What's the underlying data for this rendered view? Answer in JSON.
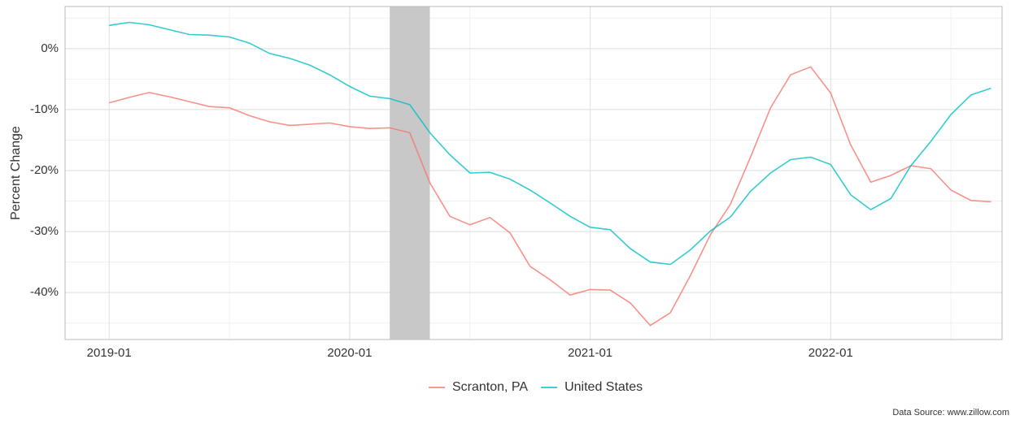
{
  "chart_data": {
    "type": "line",
    "y_label": "Percent Change",
    "caption": "Data Source: www.zillow.com",
    "x": [
      "2019-01",
      "2019-02",
      "2019-03",
      "2019-04",
      "2019-05",
      "2019-06",
      "2019-07",
      "2019-08",
      "2019-09",
      "2019-10",
      "2019-11",
      "2019-12",
      "2020-01",
      "2020-02",
      "2020-03",
      "2020-04",
      "2020-05",
      "2020-06",
      "2020-07",
      "2020-08",
      "2020-09",
      "2020-10",
      "2020-11",
      "2020-12",
      "2021-01",
      "2021-02",
      "2021-03",
      "2021-04",
      "2021-05",
      "2021-06",
      "2021-07",
      "2021-08",
      "2021-09",
      "2021-10",
      "2021-11",
      "2021-12",
      "2022-01",
      "2022-02",
      "2022-03",
      "2022-04",
      "2022-05",
      "2022-06",
      "2022-07",
      "2022-08",
      "2022-09"
    ],
    "series": [
      {
        "name": "Scranton, PA",
        "color": "#F8766D",
        "values": [
          -8.9,
          -8.0,
          -7.2,
          -7.9,
          -8.7,
          -9.5,
          -9.7,
          -11.0,
          -12.0,
          -12.6,
          -12.4,
          -12.2,
          -12.8,
          -13.1,
          -13.0,
          -13.8,
          -22.0,
          -27.5,
          -28.9,
          -27.7,
          -30.2,
          -35.7,
          -37.9,
          -40.4,
          -39.5,
          -39.6,
          -41.7,
          -45.4,
          -43.3,
          -37.2,
          -30.5,
          -25.5,
          -17.8,
          -9.7,
          -4.3,
          -3.0,
          -7.3,
          -15.8,
          -21.9,
          -20.8,
          -19.2,
          -19.7,
          -23.2,
          -24.9,
          -25.1
        ]
      },
      {
        "name": "United States",
        "color": "#00BFC4",
        "values": [
          3.8,
          4.3,
          3.9,
          3.1,
          2.3,
          2.2,
          1.9,
          0.9,
          -0.8,
          -1.6,
          -2.7,
          -4.3,
          -6.2,
          -7.8,
          -8.2,
          -9.2,
          -13.8,
          -17.4,
          -20.4,
          -20.3,
          -21.4,
          -23.2,
          -25.3,
          -27.5,
          -29.3,
          -29.7,
          -32.8,
          -35.0,
          -35.4,
          -33.0,
          -29.9,
          -27.6,
          -23.4,
          -20.4,
          -18.2,
          -17.8,
          -19.0,
          -24.0,
          -26.4,
          -24.6,
          -19.2,
          -15.2,
          -10.8,
          -7.6,
          -6.5
        ]
      }
    ],
    "shaded": {
      "start": "2020-03",
      "end": "2020-05",
      "color": "#c8c8c8"
    },
    "xticks": [
      "2019-01",
      "2020-01",
      "2021-01",
      "2022-01"
    ],
    "ylim": [
      -47.7,
      6.9
    ],
    "yticks": [
      {
        "value": 0,
        "label": "0%"
      },
      {
        "value": -10,
        "label": "-10%"
      },
      {
        "value": -20,
        "label": "-20%"
      },
      {
        "value": -30,
        "label": "-30%"
      },
      {
        "value": -40,
        "label": "-40%"
      }
    ],
    "grid": true,
    "legend": "bottom"
  }
}
